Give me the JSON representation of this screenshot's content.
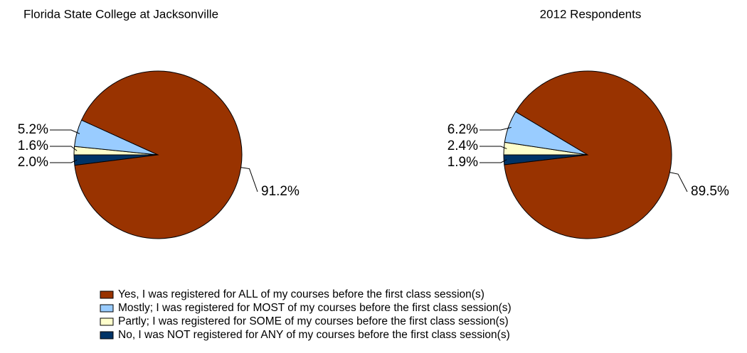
{
  "chart_data": [
    {
      "type": "pie",
      "title": "Florida State College at Jacksonville",
      "values": [
        91.2,
        5.2,
        1.6,
        2.0
      ],
      "value_labels": [
        "91.2%",
        "5.2%",
        "1.6%",
        "2.0%"
      ],
      "colors": [
        "#993300",
        "#99ccff",
        "#ffffcc",
        "#003366"
      ]
    },
    {
      "type": "pie",
      "title": "2012 Respondents",
      "values": [
        89.5,
        6.2,
        2.4,
        1.9
      ],
      "value_labels": [
        "89.5%",
        "6.2%",
        "2.4%",
        "1.9%"
      ],
      "colors": [
        "#993300",
        "#99ccff",
        "#ffffcc",
        "#003366"
      ]
    }
  ],
  "legend": {
    "labels": [
      "Yes, I was registered for ALL of my courses before the first class session(s)",
      "Mostly; I was registered for MOST of my courses before the first class session(s)",
      "Partly; I was registered for SOME of my courses before the first class session(s)",
      "No, I was NOT registered for ANY of my courses before the first class session(s)"
    ]
  }
}
